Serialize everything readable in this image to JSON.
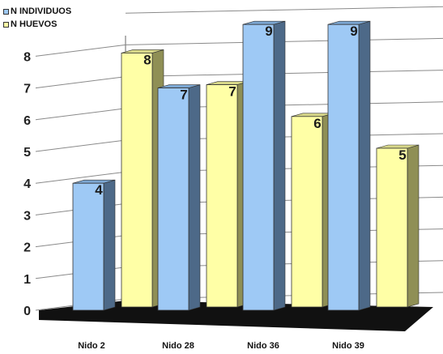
{
  "colors": {
    "series_1_front": "#9ec9f5",
    "series_1_side": "#4d6988",
    "series_1_top": "#7ca7d3",
    "series_2_front": "#ffffa6",
    "series_2_side": "#8f8f55",
    "series_2_top": "#d7d789",
    "floor": "#111111",
    "grid": "#8a8a8a"
  },
  "chart_data": {
    "type": "bar",
    "style": "3d-clustered-column",
    "categories": [
      "Nido 2",
      "Nido 28",
      "Nido 36",
      "Nido 39"
    ],
    "series": [
      {
        "name": "N INDIVIDUOS",
        "values": [
          4,
          7,
          9,
          9
        ]
      },
      {
        "name": "N HUEVOS",
        "values": [
          8,
          7,
          6,
          5
        ]
      }
    ],
    "y_ticks": [
      "0",
      "1",
      "2",
      "3",
      "4",
      "5",
      "6",
      "7",
      "8"
    ],
    "ylim": [
      0,
      9
    ],
    "grid": true,
    "legend_position": "top-left",
    "title": "",
    "xlabel": "",
    "ylabel": ""
  }
}
